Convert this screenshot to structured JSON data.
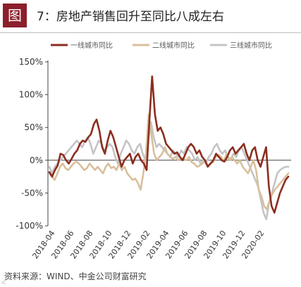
{
  "figure": {
    "badge": "图",
    "title": "7：房地产销售回升至同比八成左右",
    "source": "资料来源：WIND、中金公司财富研究",
    "watermark": "iC"
  },
  "chart_data": {
    "type": "line",
    "ylim": [
      -100,
      150
    ],
    "yticks": [
      "150%",
      "100%",
      "50%",
      "0%",
      "-50%",
      "-100%"
    ],
    "ytick_values": [
      150,
      100,
      50,
      0,
      -50,
      -100
    ],
    "xticks": [
      "2018-04",
      "2018-06",
      "2018-08",
      "2018-10",
      "2018-12",
      "2019-02",
      "2019-04",
      "2019-06",
      "2019-08",
      "2019-10",
      "2019-12",
      "2020-02"
    ],
    "grid": false,
    "legend_position": "top",
    "series": [
      {
        "name": "一线城市同比",
        "color": "#8b2e1f",
        "values": [
          -18,
          -25,
          -15,
          -8,
          10,
          8,
          0,
          -5,
          2,
          10,
          15,
          25,
          30,
          28,
          35,
          40,
          55,
          62,
          45,
          20,
          10,
          30,
          45,
          35,
          20,
          5,
          -10,
          0,
          5,
          10,
          -5,
          5,
          10,
          0,
          -5,
          -15,
          60,
          128,
          70,
          45,
          50,
          40,
          25,
          20,
          15,
          10,
          12,
          5,
          0,
          10,
          20,
          25,
          20,
          10,
          15,
          5,
          0,
          -10,
          -5,
          0,
          10,
          5,
          0,
          -2,
          5,
          15,
          20,
          10,
          15,
          20,
          25,
          10,
          0,
          15,
          20,
          0,
          -10,
          5,
          20,
          -40,
          -70,
          -80,
          -65,
          -50,
          -40,
          -30,
          -25
        ]
      },
      {
        "name": "二线城市同比",
        "color": "#d9bf9c",
        "values": [
          -20,
          -25,
          -30,
          -20,
          -10,
          -5,
          -12,
          -15,
          -10,
          -5,
          -2,
          -5,
          -10,
          -15,
          -12,
          -5,
          -10,
          -15,
          -10,
          -15,
          -20,
          -10,
          -5,
          -12,
          -10,
          -15,
          -5,
          -15,
          -10,
          -20,
          -25,
          -30,
          -28,
          -35,
          -45,
          -20,
          10,
          70,
          40,
          10,
          0,
          5,
          10,
          20,
          10,
          5,
          2,
          5,
          0,
          3,
          2,
          0,
          5,
          -3,
          -5,
          -10,
          -8,
          -5,
          0,
          -8,
          -5,
          -3,
          5,
          8,
          5,
          -2,
          10,
          0,
          5,
          0,
          -5,
          0,
          -10,
          -15,
          -20,
          -10,
          0,
          -15,
          -45,
          -55,
          -70,
          -75,
          -62,
          -52,
          -45,
          -40,
          -35,
          -30,
          -25,
          -20
        ]
      },
      {
        "name": "三线城市同比",
        "color": "#c4c4c4",
        "values": [
          -10,
          -20,
          -10,
          -5,
          0,
          5,
          10,
          15,
          20,
          25,
          30,
          25,
          20,
          30,
          35,
          25,
          10,
          20,
          30,
          25,
          15,
          20,
          25,
          20,
          5,
          -5,
          10,
          20,
          30,
          25,
          15,
          10,
          20,
          25,
          10,
          0,
          30,
          58,
          35,
          20,
          25,
          20,
          15,
          10,
          5,
          15,
          10,
          5,
          15,
          10,
          20,
          15,
          10,
          0,
          5,
          -5,
          0,
          -5,
          5,
          10,
          20,
          25,
          15,
          10,
          15,
          5,
          0,
          10,
          5,
          15,
          20,
          10,
          0,
          -10,
          -20,
          -30,
          -40,
          -60,
          -80,
          -90,
          -65,
          -50,
          -35,
          -20,
          -15,
          -12,
          -10,
          -10
        ]
      }
    ]
  }
}
